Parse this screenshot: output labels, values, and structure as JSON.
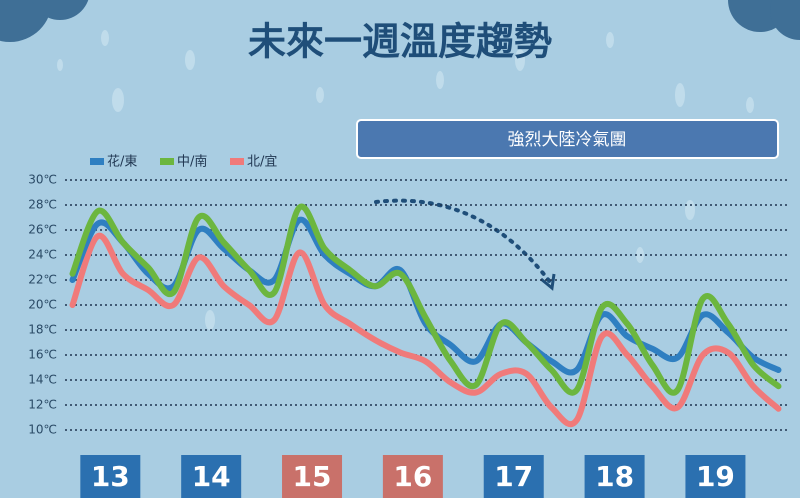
{
  "chart_data": {
    "type": "line",
    "title": "未來一週溫度趨勢",
    "annotation": "強烈大陸冷氣團",
    "x": [
      12.625,
      12.875,
      13.125,
      13.375,
      13.625,
      13.875,
      14.125,
      14.375,
      14.625,
      14.875,
      15.125,
      15.375,
      15.625,
      15.875,
      16.125,
      16.375,
      16.625,
      16.875,
      17.125,
      17.375,
      17.625,
      17.875,
      18.125,
      18.375,
      18.625,
      18.875,
      19.125,
      19.375,
      19.625
    ],
    "xlim": [
      12.62,
      19.66
    ],
    "xticks": [
      13,
      14,
      15,
      16,
      17,
      18,
      19
    ],
    "xtick_box_colors": [
      "#2b70b0",
      "#2b70b0",
      "#c9716a",
      "#c9716a",
      "#2b70b0",
      "#2b70b0",
      "#2b70b0"
    ],
    "ylim": [
      10,
      30
    ],
    "yticks": [
      {
        "value": 10,
        "label": "10℃"
      },
      {
        "value": 12,
        "label": "12℃"
      },
      {
        "value": 14,
        "label": "14℃"
      },
      {
        "value": 16,
        "label": "16℃"
      },
      {
        "value": 18,
        "label": "18℃"
      },
      {
        "value": 20,
        "label": "20℃"
      },
      {
        "value": 22,
        "label": "22℃"
      },
      {
        "value": 24,
        "label": "24℃"
      },
      {
        "value": 26,
        "label": "26℃"
      },
      {
        "value": 28,
        "label": "28℃"
      },
      {
        "value": 30,
        "label": "30℃"
      }
    ],
    "grid": true,
    "series": [
      {
        "name": "花/東",
        "color": "#2f7fc1",
        "values": [
          22,
          26.5,
          25,
          22.5,
          21.5,
          26,
          24.5,
          22.8,
          22,
          26.8,
          24,
          22.5,
          21.5,
          22.8,
          18.5,
          16.8,
          15.5,
          18.5,
          17,
          15.5,
          14.8,
          19.2,
          17.5,
          16.5,
          15.8,
          19.2,
          17.8,
          15.8,
          14.8
        ]
      },
      {
        "name": "中/南",
        "color": "#6cb63f",
        "values": [
          22.5,
          27.5,
          25,
          23,
          21,
          27,
          25,
          22.8,
          21,
          27.8,
          24.5,
          22.8,
          21.5,
          22.5,
          19,
          15.5,
          13.6,
          18.5,
          17,
          14.8,
          13.2,
          19.8,
          18.5,
          15.2,
          13.2,
          20.5,
          18.5,
          15.2,
          13.5
        ]
      },
      {
        "name": "北/宜",
        "color": "#f07a7a",
        "values": [
          20,
          25.5,
          22.5,
          21.2,
          20,
          23.8,
          21.5,
          20,
          18.8,
          24.2,
          20,
          18.5,
          17.2,
          16.2,
          15.5,
          13.8,
          13,
          14.5,
          14.5,
          11.8,
          10.8,
          17.5,
          16,
          13.5,
          11.8,
          16,
          16.2,
          13.5,
          11.7
        ]
      }
    ]
  }
}
